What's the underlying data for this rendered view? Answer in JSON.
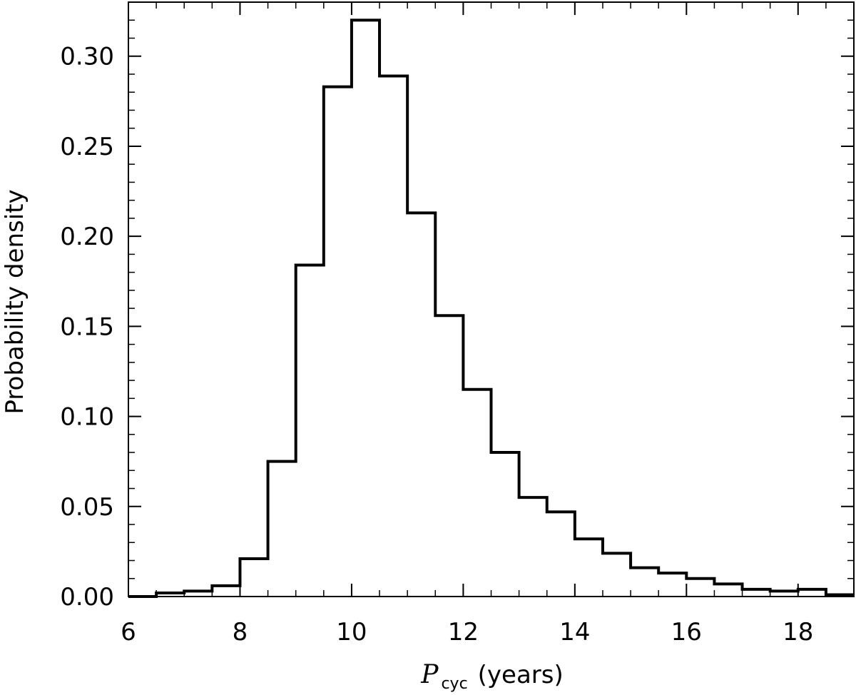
{
  "chart_data": {
    "type": "histogram",
    "title": "",
    "xlabel": {
      "symbol": "P",
      "subscript": "cyc",
      "unit": "(years)"
    },
    "ylabel": "Probability density",
    "xlim": [
      6,
      19
    ],
    "ylim": [
      0,
      0.33
    ],
    "bin_width": 0.5,
    "bins": [
      {
        "x0": 6.0,
        "x1": 6.5,
        "value": 0.0
      },
      {
        "x0": 6.5,
        "x1": 7.0,
        "value": 0.002
      },
      {
        "x0": 7.0,
        "x1": 7.5,
        "value": 0.003
      },
      {
        "x0": 7.5,
        "x1": 8.0,
        "value": 0.006
      },
      {
        "x0": 8.0,
        "x1": 8.5,
        "value": 0.021
      },
      {
        "x0": 8.5,
        "x1": 9.0,
        "value": 0.075
      },
      {
        "x0": 9.0,
        "x1": 9.5,
        "value": 0.184
      },
      {
        "x0": 9.5,
        "x1": 10.0,
        "value": 0.283
      },
      {
        "x0": 10.0,
        "x1": 10.5,
        "value": 0.32
      },
      {
        "x0": 10.5,
        "x1": 11.0,
        "value": 0.289
      },
      {
        "x0": 11.0,
        "x1": 11.5,
        "value": 0.213
      },
      {
        "x0": 11.5,
        "x1": 12.0,
        "value": 0.156
      },
      {
        "x0": 12.0,
        "x1": 12.5,
        "value": 0.115
      },
      {
        "x0": 12.5,
        "x1": 13.0,
        "value": 0.08
      },
      {
        "x0": 13.0,
        "x1": 13.5,
        "value": 0.055
      },
      {
        "x0": 13.5,
        "x1": 14.0,
        "value": 0.047
      },
      {
        "x0": 14.0,
        "x1": 14.5,
        "value": 0.032
      },
      {
        "x0": 14.5,
        "x1": 15.0,
        "value": 0.024
      },
      {
        "x0": 15.0,
        "x1": 15.5,
        "value": 0.016
      },
      {
        "x0": 15.5,
        "x1": 16.0,
        "value": 0.013
      },
      {
        "x0": 16.0,
        "x1": 16.5,
        "value": 0.01
      },
      {
        "x0": 16.5,
        "x1": 17.0,
        "value": 0.007
      },
      {
        "x0": 17.0,
        "x1": 17.5,
        "value": 0.004
      },
      {
        "x0": 17.5,
        "x1": 18.0,
        "value": 0.003
      },
      {
        "x0": 18.0,
        "x1": 18.5,
        "value": 0.004
      },
      {
        "x0": 18.5,
        "x1": 19.0,
        "value": 0.001
      }
    ],
    "x_ticks": {
      "major": [
        6,
        8,
        10,
        12,
        14,
        16,
        18
      ],
      "major_labels": [
        "6",
        "8",
        "10",
        "12",
        "14",
        "16",
        "18"
      ],
      "minor_step": 0.5
    },
    "y_ticks": {
      "major": [
        0.0,
        0.05,
        0.1,
        0.15,
        0.2,
        0.25,
        0.3
      ],
      "major_labels": [
        "0.00",
        "0.05",
        "0.10",
        "0.15",
        "0.20",
        "0.25",
        "0.30"
      ],
      "minor_step": 0.01
    },
    "grid": false,
    "legend": "none",
    "colors": {
      "line": "#000000",
      "background": "#ffffff"
    }
  }
}
